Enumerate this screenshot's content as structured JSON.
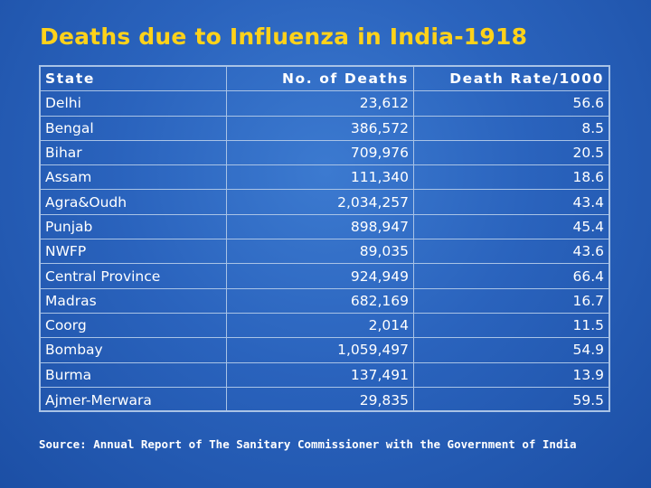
{
  "title": "Deaths due to Influenza in India-1918",
  "table": {
    "headers": [
      "State",
      "No. of Deaths",
      "Death Rate/1000"
    ],
    "rows": [
      [
        "Delhi",
        "23,612",
        "56.6"
      ],
      [
        "Bengal",
        "386,572",
        "8.5"
      ],
      [
        "Bihar",
        "709,976",
        "20.5"
      ],
      [
        "Assam",
        "111,340",
        "18.6"
      ],
      [
        "Agra&Oudh",
        "2,034,257",
        "43.4"
      ],
      [
        "Punjab",
        "898,947",
        "45.4"
      ],
      [
        "NWFP",
        "89,035",
        "43.6"
      ],
      [
        "Central Province",
        "924,949",
        "66.4"
      ],
      [
        "Madras",
        "682,169",
        "16.7"
      ],
      [
        "Coorg",
        "2,014",
        "11.5"
      ],
      [
        "Bombay",
        "1,059,497",
        "54.9"
      ],
      [
        "Burma",
        "137,491",
        "13.9"
      ],
      [
        "Ajmer-Merwara",
        "29,835",
        "59.5"
      ]
    ]
  },
  "source": "Source: Annual Report of The Sanitary Commissioner with the Government of India",
  "colors": {
    "background": "#2a63bd",
    "title": "#ffd21a",
    "text": "#ffffff",
    "grid_lines": "#a9c3e6"
  }
}
